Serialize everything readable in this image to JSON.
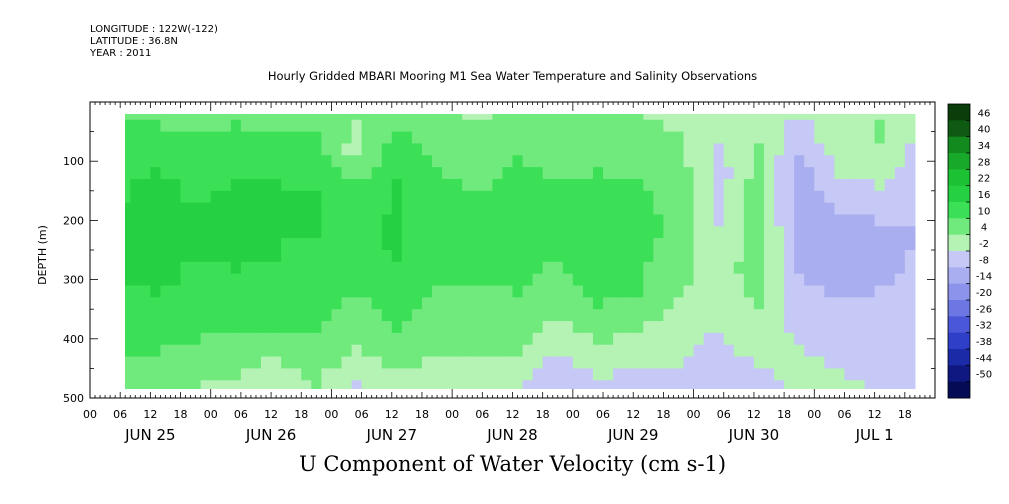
{
  "header": {
    "longitude": "LONGITUDE : 122W(-122)",
    "latitude": "LATITUDE : 36.8N",
    "year": "YEAR : 2011"
  },
  "title": "Hourly Gridded MBARI Mooring M1 Sea Water Temperature and Salinity Observations",
  "bottom_title": "U Component of Water Velocity (cm s-1)",
  "chart_data": {
    "type": "heatmap",
    "title": "Hourly Gridded MBARI Mooring M1 Sea Water Temperature and Salinity Observations",
    "xlabel": "",
    "ylabel": "DEPTH (m)",
    "colorbar_label": "U Component of Water Velocity (cm s-1)",
    "ylim": [
      500,
      0
    ],
    "y_ticks": [
      100,
      200,
      300,
      400,
      500
    ],
    "x_range_hours": [
      0,
      168
    ],
    "x_hour_ticks": [
      "00",
      "06",
      "12",
      "18",
      "00",
      "06",
      "12",
      "18",
      "00",
      "06",
      "12",
      "18",
      "00",
      "06",
      "12",
      "18",
      "00",
      "06",
      "12",
      "18",
      "00",
      "06",
      "12",
      "18",
      "00",
      "06",
      "12",
      "18"
    ],
    "x_day_labels": [
      "JUN 25",
      "JUN 26",
      "JUN 27",
      "JUN 28",
      "JUN 29",
      "JUN 30",
      "JUL  1"
    ],
    "colorbar_levels": [
      "46",
      "40",
      "34",
      "28",
      "22",
      "16",
      "10",
      "4",
      "-2",
      "-8",
      "-14",
      "-20",
      "-26",
      "-32",
      "-38",
      "-44",
      "-50"
    ],
    "colorbar_colors": [
      "#0a3d0a",
      "#0e5a12",
      "#138a1e",
      "#18a82a",
      "#1cc233",
      "#25d142",
      "#3ce057",
      "#70ea7c",
      "#b4f3b4",
      "#c6c9f5",
      "#a8aef0",
      "#8b93ea",
      "#6c77e3",
      "#4a57d8",
      "#2f3fc8",
      "#1b2aa6",
      "#0e1880",
      "#050c55"
    ],
    "depths_m": [
      20,
      40,
      60,
      80,
      100,
      120,
      140,
      160,
      180,
      200,
      220,
      240,
      260,
      280,
      300,
      320,
      340,
      360,
      380,
      400,
      420,
      440,
      460,
      480
    ],
    "columns": [
      {
        "hour": 4,
        "u": [
          9,
          10,
          11,
          12,
          13,
          14,
          15,
          15,
          16,
          16,
          16,
          16,
          17,
          17,
          16,
          15,
          14,
          13,
          12,
          11,
          10,
          9,
          7,
          6
        ]
      },
      {
        "hour": 12,
        "u": [
          8,
          10,
          12,
          14,
          15,
          16,
          17,
          17,
          18,
          18,
          18,
          18,
          18,
          18,
          17,
          16,
          15,
          14,
          13,
          12,
          10,
          8,
          6,
          5
        ]
      },
      {
        "hour": 20,
        "u": [
          7,
          9,
          11,
          12,
          13,
          14,
          15,
          15,
          16,
          16,
          16,
          16,
          16,
          15,
          15,
          14,
          13,
          12,
          11,
          10,
          9,
          7,
          6,
          4
        ]
      },
      {
        "hour": 28,
        "u": [
          8,
          10,
          12,
          13,
          14,
          15,
          16,
          17,
          18,
          18,
          18,
          17,
          17,
          16,
          15,
          14,
          13,
          12,
          10,
          9,
          7,
          6,
          4,
          2
        ]
      },
      {
        "hour": 36,
        "u": [
          7,
          9,
          11,
          13,
          14,
          15,
          16,
          16,
          17,
          17,
          17,
          16,
          16,
          15,
          15,
          14,
          13,
          12,
          10,
          8,
          6,
          3,
          1,
          0
        ]
      },
      {
        "hour": 44,
        "u": [
          6,
          8,
          10,
          12,
          13,
          14,
          15,
          16,
          16,
          16,
          16,
          15,
          15,
          14,
          14,
          13,
          12,
          11,
          10,
          9,
          8,
          7,
          5,
          4
        ]
      },
      {
        "hour": 52,
        "u": [
          4,
          3,
          2,
          1,
          4,
          8,
          10,
          11,
          12,
          13,
          13,
          13,
          12,
          12,
          11,
          10,
          9,
          8,
          7,
          5,
          3,
          1,
          -1,
          -3
        ]
      },
      {
        "hour": 60,
        "u": [
          7,
          9,
          11,
          13,
          14,
          15,
          16,
          16,
          17,
          17,
          17,
          17,
          16,
          15,
          14,
          13,
          12,
          11,
          10,
          9,
          7,
          5,
          3,
          1
        ]
      },
      {
        "hour": 68,
        "u": [
          5,
          6,
          7,
          8,
          9,
          10,
          11,
          11,
          12,
          12,
          12,
          12,
          11,
          11,
          10,
          9,
          8,
          7,
          6,
          5,
          4,
          3,
          2,
          1
        ]
      },
      {
        "hour": 76,
        "u": [
          3,
          4,
          5,
          6,
          7,
          8,
          9,
          10,
          11,
          12,
          12,
          12,
          11,
          11,
          10,
          9,
          8,
          7,
          6,
          5,
          4,
          3,
          2,
          1
        ]
      },
      {
        "hour": 84,
        "u": [
          6,
          7,
          8,
          9,
          10,
          11,
          12,
          12,
          13,
          13,
          13,
          13,
          12,
          12,
          11,
          10,
          9,
          8,
          7,
          6,
          5,
          3,
          1,
          -1
        ]
      },
      {
        "hour": 92,
        "u": [
          4,
          5,
          6,
          7,
          8,
          9,
          10,
          11,
          11,
          11,
          11,
          10,
          10,
          9,
          8,
          7,
          6,
          4,
          2,
          0,
          -2,
          -4,
          -6,
          -8
        ]
      },
      {
        "hour": 100,
        "u": [
          5,
          6,
          7,
          8,
          9,
          10,
          11,
          12,
          12,
          13,
          13,
          13,
          13,
          13,
          12,
          11,
          10,
          9,
          7,
          5,
          3,
          1,
          -1,
          -3
        ]
      },
      {
        "hour": 108,
        "u": [
          4,
          5,
          6,
          7,
          8,
          9,
          10,
          11,
          11,
          12,
          12,
          12,
          12,
          11,
          11,
          10,
          8,
          6,
          4,
          2,
          0,
          -2,
          -4,
          -6
        ]
      },
      {
        "hour": 116,
        "u": [
          2,
          3,
          4,
          5,
          6,
          7,
          7,
          8,
          8,
          8,
          8,
          7,
          7,
          6,
          5,
          4,
          3,
          2,
          1,
          0,
          -1,
          -2,
          -3,
          -4
        ]
      },
      {
        "hour": 124,
        "u": [
          0,
          -1,
          -2,
          -3,
          -4,
          -5,
          -5,
          -5,
          -4,
          -3,
          -2,
          -1,
          0,
          1,
          1,
          1,
          0,
          -1,
          -2,
          -3,
          -4,
          -5,
          -6,
          -8
        ]
      },
      {
        "hour": 132,
        "u": [
          1,
          2,
          3,
          4,
          5,
          6,
          7,
          8,
          8,
          8,
          8,
          8,
          7,
          7,
          6,
          5,
          4,
          3,
          2,
          1,
          0,
          -2,
          -4,
          -6
        ]
      },
      {
        "hour": 140,
        "u": [
          -2,
          -4,
          -6,
          -8,
          -10,
          -11,
          -12,
          -13,
          -13,
          -13,
          -12,
          -11,
          -10,
          -9,
          -8,
          -7,
          -6,
          -5,
          -4,
          -3,
          -2,
          -1,
          0,
          1
        ]
      },
      {
        "hour": 148,
        "u": [
          1,
          2,
          2,
          1,
          0,
          -2,
          -4,
          -6,
          -8,
          -9,
          -10,
          -11,
          -11,
          -11,
          -10,
          -9,
          -8,
          -7,
          -6,
          -5,
          -4,
          -3,
          -2,
          -1
        ]
      },
      {
        "hour": 156,
        "u": [
          3,
          4,
          4,
          3,
          2,
          0,
          -2,
          -4,
          -6,
          -8,
          -9,
          -10,
          -10,
          -10,
          -9,
          -8,
          -7,
          -6,
          -5,
          -4,
          -4,
          -3,
          -3,
          -3
        ]
      },
      {
        "hour": 164,
        "u": [
          -2,
          -3,
          -4,
          -5,
          -6,
          -7,
          -7,
          -8,
          -8,
          -8,
          -8,
          -8,
          -7,
          -7,
          -6,
          -6,
          -5,
          -5,
          -4,
          -4,
          -3,
          -3,
          -2,
          -2
        ]
      }
    ]
  }
}
